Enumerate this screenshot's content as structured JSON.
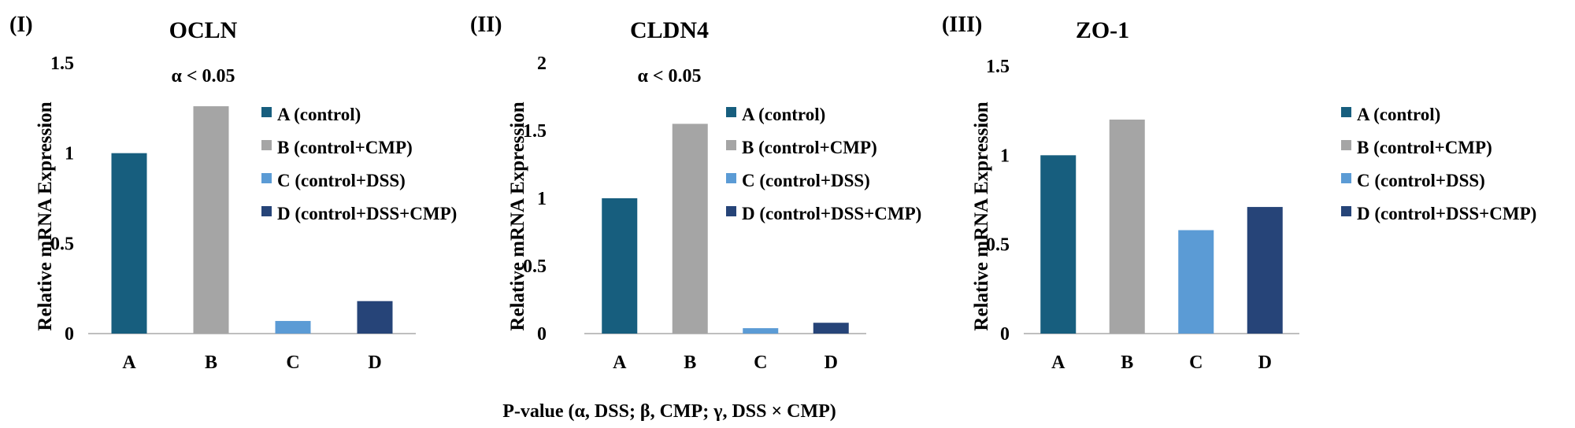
{
  "chart_data": [
    {
      "type": "bar",
      "panel_label": "(I)",
      "title": "OCLN",
      "annotation": "α < 0.05",
      "ylabel": "Relative mRNA Expression",
      "xlabel": "",
      "categories": [
        "A",
        "B",
        "C",
        "D"
      ],
      "values": [
        1.0,
        1.26,
        0.07,
        0.18
      ],
      "ylim": [
        0,
        1.5
      ],
      "yticks": [
        "0",
        "0.5",
        "1",
        "1.5"
      ],
      "legend": [
        "A (control)",
        "B (control+CMP)",
        "C (control+DSS)",
        "D (control+DSS+CMP)"
      ],
      "legend_position": "right",
      "grid": false
    },
    {
      "type": "bar",
      "panel_label": "(II)",
      "title": "CLDN4",
      "annotation": "α < 0.05",
      "ylabel": "Relative mRNA Expression",
      "xlabel": "",
      "categories": [
        "A",
        "B",
        "C",
        "D"
      ],
      "values": [
        1.0,
        1.55,
        0.04,
        0.08
      ],
      "ylim": [
        0,
        2
      ],
      "yticks": [
        "0",
        "0.5",
        "1",
        "1.5",
        "2"
      ],
      "legend": [
        "A (control)",
        "B (control+CMP)",
        "C (control+DSS)",
        "D (control+DSS+CMP)"
      ],
      "legend_position": "right",
      "grid": false
    },
    {
      "type": "bar",
      "panel_label": "(III)",
      "title": "ZO-1",
      "annotation": "",
      "ylabel": "Relative mRNA Expression",
      "xlabel": "",
      "categories": [
        "A",
        "B",
        "C",
        "D"
      ],
      "values": [
        1.0,
        1.2,
        0.58,
        0.71
      ],
      "ylim": [
        0,
        1.5
      ],
      "yticks": [
        "0",
        "0.5",
        "1",
        "1.5"
      ],
      "legend": [
        "A (control)",
        "B (control+CMP)",
        "C (control+DSS)",
        "D (control+DSS+CMP)"
      ],
      "legend_position": "right",
      "grid": false
    }
  ],
  "colors": {
    "A": "#175E7E",
    "B": "#A5A5A5",
    "C": "#5B9BD5",
    "D": "#264478",
    "axis": "#BFBFBF"
  },
  "footnote": "P-value (α, DSS; β, CMP; γ, DSS × CMP)"
}
